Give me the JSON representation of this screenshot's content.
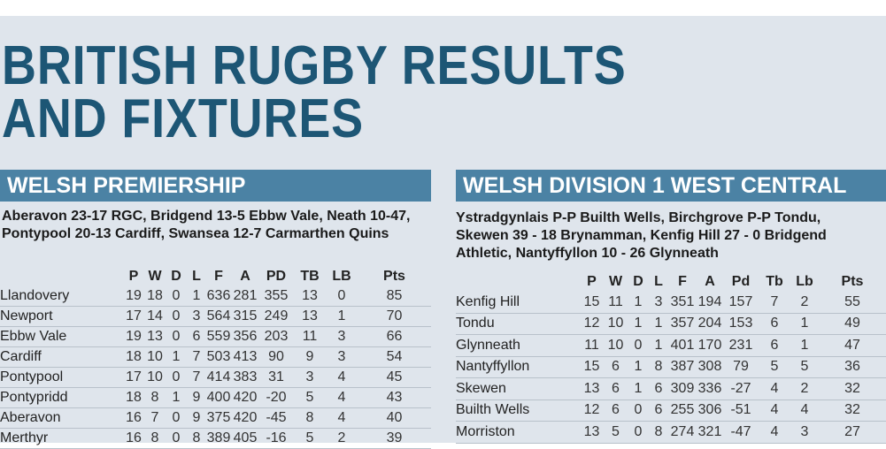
{
  "header": {
    "title_lines": [
      "BRITISH RUGBY RESULTS",
      "AND FIXTURES"
    ]
  },
  "left": {
    "heading": "WELSH PREMIERSHIP",
    "results": "Aberavon 23-17 RGC, Bridgend 13-5 Ebbw Vale, Neath 10-47, Pontypool 20-13 Cardiff, Swansea 12-7 Carmarthen Quins",
    "table": {
      "header": [
        "",
        "P",
        "W",
        "D",
        "L",
        "F",
        "A",
        "PD",
        "TB",
        "LB",
        "Pts"
      ],
      "rows": [
        [
          "Llandovery",
          19,
          18,
          0,
          1,
          636,
          281,
          355,
          13,
          0,
          85
        ],
        [
          "Newport",
          17,
          14,
          0,
          3,
          564,
          315,
          249,
          13,
          1,
          70
        ],
        [
          "Ebbw Vale",
          19,
          13,
          0,
          6,
          559,
          356,
          203,
          11,
          3,
          66
        ],
        [
          "Cardiff",
          18,
          10,
          1,
          7,
          503,
          413,
          90,
          9,
          3,
          54
        ],
        [
          "Pontypool",
          17,
          10,
          0,
          7,
          414,
          383,
          31,
          3,
          4,
          45
        ],
        [
          "Pontypridd",
          18,
          8,
          1,
          9,
          400,
          420,
          -20,
          5,
          4,
          43
        ],
        [
          "Aberavon",
          16,
          7,
          0,
          9,
          375,
          420,
          -45,
          8,
          4,
          40
        ],
        [
          "Merthyr",
          16,
          8,
          0,
          8,
          389,
          405,
          -16,
          5,
          2,
          39
        ]
      ]
    }
  },
  "right": {
    "heading": "WELSH DIVISION 1 WEST CENTRAL",
    "results": "Ystradgynlais P-P Builth Wells,  Birchgrove P-P Tondu, Skewen 39 - 18 Brynamman,  Kenfig Hill 27 - 0 Bridgend Athletic,  Nantyffyllon 10 - 26 Glynneath",
    "table": {
      "header": [
        "",
        "P",
        "W",
        "D",
        "L",
        "F",
        "A",
        "Pd",
        "Tb",
        "Lb",
        "Pts"
      ],
      "rows": [
        [
          "Kenfig Hill",
          15,
          11,
          1,
          3,
          351,
          194,
          157,
          7,
          2,
          55
        ],
        [
          "Tondu",
          12,
          10,
          1,
          1,
          357,
          204,
          153,
          6,
          1,
          49
        ],
        [
          "Glynneath",
          11,
          10,
          0,
          1,
          401,
          170,
          231,
          6,
          1,
          47
        ],
        [
          "Nantyffyllon",
          15,
          6,
          1,
          8,
          387,
          308,
          79,
          5,
          5,
          36
        ],
        [
          "Skewen",
          13,
          6,
          1,
          6,
          309,
          336,
          -27,
          4,
          2,
          32
        ],
        [
          "Builth Wells",
          12,
          6,
          0,
          6,
          255,
          306,
          -51,
          4,
          4,
          32
        ],
        [
          "Morriston",
          13,
          5,
          0,
          8,
          274,
          321,
          -47,
          4,
          3,
          27
        ]
      ]
    }
  }
}
